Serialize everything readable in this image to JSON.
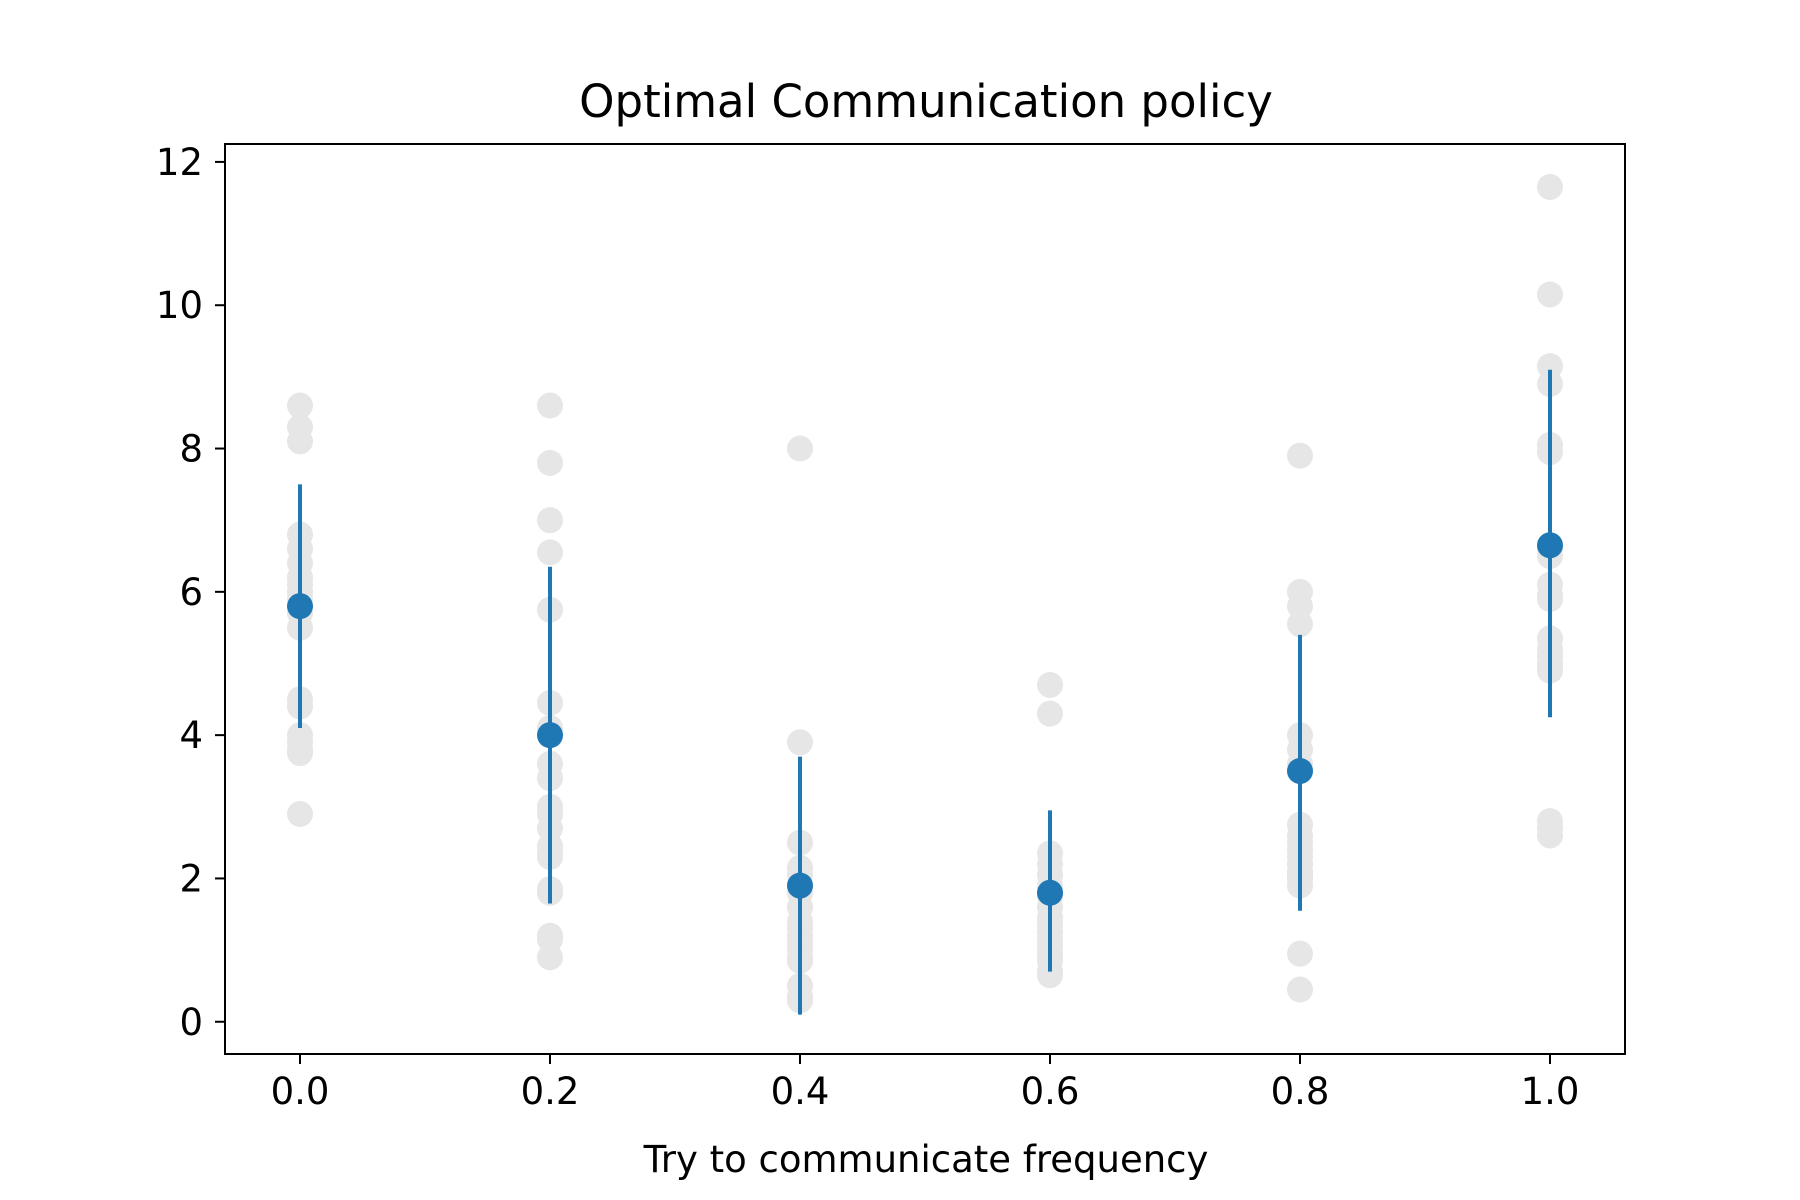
{
  "chart_data": {
    "type": "scatter",
    "title": "Optimal Communication policy",
    "xlabel": "Try to communicate frequency",
    "ylabel": "",
    "xlim": [
      -0.06,
      1.06
    ],
    "ylim": [
      -0.45,
      12.25
    ],
    "xticks": [
      "0.0",
      "0.2",
      "0.4",
      "0.6",
      "0.8",
      "1.0"
    ],
    "yticks": [
      "0",
      "2",
      "4",
      "6",
      "8",
      "10",
      "12"
    ],
    "grid": false,
    "colors": {
      "raw": "#e6e6e6",
      "mean": "#1f77b4"
    },
    "series": [
      {
        "x": [
          0.0,
          0.0,
          0.0,
          0.0,
          0.0,
          0.0,
          0.0,
          0.0,
          0.0,
          0.0,
          0.0,
          0.0,
          0.0,
          0.0,
          0.0,
          0.0,
          0.0,
          0.0,
          0.0,
          0.0,
          0.2,
          0.2,
          0.2,
          0.2,
          0.2,
          0.2,
          0.2,
          0.2,
          0.2,
          0.2,
          0.2,
          0.2,
          0.2,
          0.2,
          0.2,
          0.2,
          0.2,
          0.2,
          0.2,
          0.2,
          0.4,
          0.4,
          0.4,
          0.4,
          0.4,
          0.4,
          0.4,
          0.4,
          0.4,
          0.4,
          0.4,
          0.4,
          0.4,
          0.4,
          0.4,
          0.4,
          0.4,
          0.4,
          0.6,
          0.6,
          0.6,
          0.6,
          0.6,
          0.6,
          0.6,
          0.6,
          0.6,
          0.6,
          0.6,
          0.6,
          0.6,
          0.6,
          0.6,
          0.6,
          0.6,
          0.6,
          0.8,
          0.8,
          0.8,
          0.8,
          0.8,
          0.8,
          0.8,
          0.8,
          0.8,
          0.8,
          0.8,
          0.8,
          0.8,
          0.8,
          0.8,
          0.8,
          0.8,
          0.8,
          0.8,
          0.8,
          1.0,
          1.0,
          1.0,
          1.0,
          1.0,
          1.0,
          1.0,
          1.0,
          1.0,
          1.0,
          1.0,
          1.0,
          1.0,
          1.0,
          1.0,
          1.0,
          1.0,
          1.0,
          1.0,
          1.0
        ],
        "y": [
          8.6,
          8.3,
          8.1,
          6.8,
          6.6,
          6.4,
          6.2,
          6.1,
          6.0,
          5.9,
          5.8,
          5.7,
          5.5,
          4.5,
          4.4,
          4.0,
          3.9,
          3.8,
          3.75,
          2.9,
          8.6,
          7.8,
          7.0,
          6.55,
          5.75,
          4.45,
          4.1,
          3.6,
          3.4,
          3.0,
          2.9,
          2.7,
          2.45,
          2.35,
          2.3,
          1.85,
          1.8,
          1.2,
          1.15,
          0.9,
          8.0,
          3.9,
          2.5,
          2.15,
          2.05,
          1.9,
          1.8,
          1.6,
          1.4,
          1.3,
          1.2,
          1.1,
          1.0,
          0.9,
          0.85,
          0.5,
          0.35,
          0.3,
          4.7,
          4.3,
          2.35,
          2.2,
          2.05,
          1.9,
          1.75,
          1.6,
          1.45,
          1.35,
          1.25,
          1.15,
          1.05,
          0.95,
          0.9,
          0.85,
          0.7,
          0.65,
          7.9,
          6.0,
          5.8,
          5.55,
          4.0,
          3.8,
          3.6,
          3.5,
          2.75,
          2.6,
          2.5,
          2.4,
          2.3,
          2.2,
          2.1,
          2.05,
          2.0,
          1.9,
          0.95,
          0.45,
          11.65,
          10.15,
          9.15,
          8.9,
          8.05,
          7.95,
          6.6,
          6.5,
          6.1,
          5.95,
          5.9,
          5.35,
          5.2,
          5.1,
          5.0,
          4.95,
          4.9,
          2.8,
          2.7,
          2.6
        ]
      },
      {
        "x": [
          0.0,
          0.2,
          0.4,
          0.6,
          0.8,
          1.0
        ],
        "y": [
          5.8,
          4.0,
          1.9,
          1.8,
          3.5,
          6.65
        ],
        "yerr_low": [
          4.1,
          1.65,
          0.1,
          0.7,
          1.55,
          4.25
        ],
        "yerr_high": [
          7.5,
          6.35,
          3.7,
          2.95,
          5.4,
          9.1
        ]
      }
    ]
  }
}
